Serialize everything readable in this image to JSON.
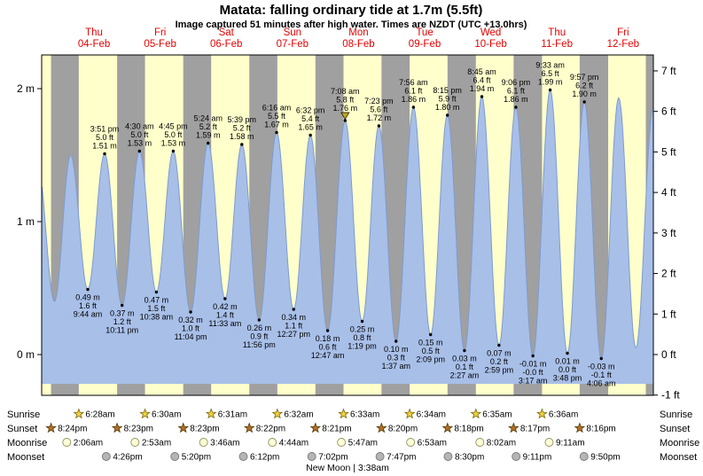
{
  "title": "Matata: falling  ordinary tide at 1.7m (5.5ft)",
  "subtitle": "Image captured 51 minutes after high water. Times are NZDT (UTC +13.0hrs)",
  "colors": {
    "day_background": "#ffffcc",
    "night_background": "#a0a0a0",
    "tide_fill": "#a8bfe8",
    "tide_stroke": "#7e9bcf",
    "day_label_red": "#e80000",
    "current_marker": "#c0a820",
    "text": "#000000"
  },
  "chart_data": {
    "type": "area",
    "title": "Matata: falling  ordinary tide at 1.7m (5.5ft)",
    "x_axis": "Thu 04-Feb through Fri 12-Feb, time of day (NZDT)",
    "y_axis_left_unit": "m",
    "y_axis_right_unit": "ft",
    "ylim_m": [
      -0.31,
      2.25
    ],
    "days": [
      {
        "weekday": "Thu",
        "date": "04-Feb"
      },
      {
        "weekday": "Fri",
        "date": "05-Feb"
      },
      {
        "weekday": "Sat",
        "date": "06-Feb"
      },
      {
        "weekday": "Sun",
        "date": "07-Feb"
      },
      {
        "weekday": "Mon",
        "date": "08-Feb"
      },
      {
        "weekday": "Tue",
        "date": "09-Feb"
      },
      {
        "weekday": "Wed",
        "date": "10-Feb"
      },
      {
        "weekday": "Thu",
        "date": "11-Feb"
      },
      {
        "weekday": "Fri",
        "date": "12-Feb"
      }
    ],
    "axes": {
      "left_ticks": [
        {
          "value": 0,
          "label": "0 m"
        },
        {
          "value": 1,
          "label": "1 m"
        },
        {
          "value": 2,
          "label": "2 m"
        }
      ],
      "right_ticks": [
        {
          "value": -1,
          "label": "-1 ft"
        },
        {
          "value": 0,
          "label": "0 ft"
        },
        {
          "value": 1,
          "label": "1 ft"
        },
        {
          "value": 2,
          "label": "2 ft"
        },
        {
          "value": 3,
          "label": "3 ft"
        },
        {
          "value": 4,
          "label": "4 ft"
        },
        {
          "value": 5,
          "label": "5 ft"
        },
        {
          "value": 6,
          "label": "6 ft"
        },
        {
          "value": 7,
          "label": "7 ft"
        }
      ]
    },
    "tide_events": [
      {
        "d": 0,
        "t": "09:44",
        "m": 0.49,
        "kind": "low",
        "lines": [
          "0.49 m",
          "1.6 ft",
          "9:44 am"
        ]
      },
      {
        "d": 0,
        "t": "15:51",
        "m": 1.51,
        "kind": "high",
        "lines": [
          "3:51 pm",
          "5.0 ft",
          "1.51 m"
        ]
      },
      {
        "d": 0,
        "t": "22:11",
        "m": 0.37,
        "kind": "low",
        "lines": [
          "0.37 m",
          "1.2 ft",
          "10:11 pm"
        ]
      },
      {
        "d": 1,
        "t": "04:30",
        "m": 1.53,
        "kind": "high",
        "lines": [
          "4:30 am",
          "5.0 ft",
          "1.53 m"
        ]
      },
      {
        "d": 1,
        "t": "10:38",
        "m": 0.47,
        "kind": "low",
        "lines": [
          "0.47 m",
          "1.5 ft",
          "10:38 am"
        ]
      },
      {
        "d": 1,
        "t": "16:45",
        "m": 1.53,
        "kind": "high",
        "lines": [
          "4:45 pm",
          "5.0 ft",
          "1.53 m"
        ]
      },
      {
        "d": 1,
        "t": "23:04",
        "m": 0.32,
        "kind": "low",
        "lines": [
          "0.32 m",
          "1.0 ft",
          "11:04 pm"
        ]
      },
      {
        "d": 2,
        "t": "05:24",
        "m": 1.59,
        "kind": "high",
        "lines": [
          "5:24 am",
          "5.2 ft",
          "1.59 m"
        ]
      },
      {
        "d": 2,
        "t": "11:33",
        "m": 0.42,
        "kind": "low",
        "lines": [
          "0.42 m",
          "1.4 ft",
          "11:33 am"
        ]
      },
      {
        "d": 2,
        "t": "17:39",
        "m": 1.58,
        "kind": "high",
        "lines": [
          "5:39 pm",
          "5.2 ft",
          "1.58 m"
        ]
      },
      {
        "d": 2,
        "t": "23:56",
        "m": 0.26,
        "kind": "low",
        "lines": [
          "0.26 m",
          "0.9 ft",
          "11:56 pm"
        ]
      },
      {
        "d": 3,
        "t": "06:16",
        "m": 1.67,
        "kind": "high",
        "lines": [
          "6:16 am",
          "5.5 ft",
          "1.67 m"
        ]
      },
      {
        "d": 3,
        "t": "12:27",
        "m": 0.34,
        "kind": "low",
        "lines": [
          "0.34 m",
          "1.1 ft",
          "12:27 pm"
        ]
      },
      {
        "d": 3,
        "t": "18:32",
        "m": 1.65,
        "kind": "high",
        "lines": [
          "6:32 pm",
          "5.4 ft",
          "1.65 m"
        ]
      },
      {
        "d": 4,
        "t": "00:47",
        "m": 0.18,
        "kind": "low",
        "lines": [
          "0.18 m",
          "0.6 ft",
          "12:47 am"
        ]
      },
      {
        "d": 4,
        "t": "07:08",
        "m": 1.76,
        "kind": "high",
        "current": true,
        "lines": [
          "7:08 am",
          "5.8 ft",
          "1.76 m"
        ]
      },
      {
        "d": 4,
        "t": "13:19",
        "m": 0.25,
        "kind": "low",
        "lines": [
          "0.25 m",
          "0.8 ft",
          "1:19 pm"
        ]
      },
      {
        "d": 4,
        "t": "19:23",
        "m": 1.72,
        "kind": "high",
        "lines": [
          "7:23 pm",
          "5.6 ft",
          "1.72 m"
        ]
      },
      {
        "d": 5,
        "t": "01:37",
        "m": 0.1,
        "kind": "low",
        "lines": [
          "0.10 m",
          "0.3 ft",
          "1:37 am"
        ]
      },
      {
        "d": 5,
        "t": "07:56",
        "m": 1.86,
        "kind": "high",
        "lines": [
          "7:56 am",
          "6.1 ft",
          "1.86 m"
        ]
      },
      {
        "d": 5,
        "t": "14:09",
        "m": 0.15,
        "kind": "low",
        "lines": [
          "0.15 m",
          "0.5 ft",
          "2:09 pm"
        ]
      },
      {
        "d": 5,
        "t": "20:15",
        "m": 1.8,
        "kind": "high",
        "lines": [
          "8:15 pm",
          "5.9 ft",
          "1.80 m"
        ]
      },
      {
        "d": 6,
        "t": "02:27",
        "m": 0.03,
        "kind": "low",
        "lines": [
          "0.03 m",
          "0.1 ft",
          "2:27 am"
        ]
      },
      {
        "d": 6,
        "t": "08:45",
        "m": 1.94,
        "kind": "high",
        "lines": [
          "8:45 am",
          "6.4 ft",
          "1.94 m"
        ]
      },
      {
        "d": 6,
        "t": "14:59",
        "m": 0.07,
        "kind": "low",
        "lines": [
          "0.07 m",
          "0.2 ft",
          "2:59 pm"
        ]
      },
      {
        "d": 6,
        "t": "21:06",
        "m": 1.86,
        "kind": "high",
        "lines": [
          "9:06 pm",
          "6.1 ft",
          "1.86 m"
        ]
      },
      {
        "d": 7,
        "t": "03:17",
        "m": -0.01,
        "kind": "low",
        "lines": [
          "-0.01 m",
          "-0.0 ft",
          "3:17 am"
        ]
      },
      {
        "d": 7,
        "t": "09:33",
        "m": 1.99,
        "kind": "high",
        "lines": [
          "9:33 am",
          "6.5 ft",
          "1.99 m"
        ]
      },
      {
        "d": 7,
        "t": "15:48",
        "m": 0.01,
        "kind": "low",
        "lines": [
          "0.01 m",
          "0.0 ft",
          "3:48 pm"
        ]
      },
      {
        "d": 7,
        "t": "21:57",
        "m": 1.9,
        "kind": "high",
        "lines": [
          "9:57 pm",
          "6.2 ft",
          "1.90 m"
        ]
      },
      {
        "d": 8,
        "t": "04:06",
        "m": -0.03,
        "kind": "low",
        "lines": [
          "-0.03 m",
          "-0.1 ft",
          "4:06 am"
        ]
      }
    ],
    "curve_edge_estimates": [
      {
        "d": -1,
        "t": "15:25",
        "m": 1.45,
        "kind": "high"
      },
      {
        "d": -1,
        "t": "21:40",
        "m": 0.4,
        "kind": "low"
      },
      {
        "d": 0,
        "t": "03:30",
        "m": 1.5,
        "kind": "high"
      },
      {
        "d": 8,
        "t": "10:25",
        "m": 1.93,
        "kind": "high"
      },
      {
        "d": 8,
        "t": "16:40",
        "m": 0.05,
        "kind": "low"
      },
      {
        "d": 8,
        "t": "22:55",
        "m": 1.85,
        "kind": "high"
      }
    ]
  },
  "sun_moon": {
    "rows": [
      {
        "name": "Sunrise",
        "icon": "sunrise",
        "events": [
          {
            "d": 0,
            "t": "06:28",
            "label": "6:28am"
          },
          {
            "d": 1,
            "t": "06:30",
            "label": "6:30am"
          },
          {
            "d": 2,
            "t": "06:31",
            "label": "6:31am"
          },
          {
            "d": 3,
            "t": "06:32",
            "label": "6:32am"
          },
          {
            "d": 4,
            "t": "06:33",
            "label": "6:33am"
          },
          {
            "d": 5,
            "t": "06:34",
            "label": "6:34am"
          },
          {
            "d": 6,
            "t": "06:35",
            "label": "6:35am"
          },
          {
            "d": 7,
            "t": "06:36",
            "label": "6:36am"
          }
        ]
      },
      {
        "name": "Sunset",
        "icon": "sunset",
        "events": [
          {
            "d": -1,
            "t": "20:24",
            "label": "8:24pm"
          },
          {
            "d": 0,
            "t": "20:23",
            "label": "8:23pm"
          },
          {
            "d": 1,
            "t": "20:23",
            "label": "8:23pm"
          },
          {
            "d": 2,
            "t": "20:22",
            "label": "8:22pm"
          },
          {
            "d": 3,
            "t": "20:21",
            "label": "8:21pm"
          },
          {
            "d": 4,
            "t": "20:20",
            "label": "8:20pm"
          },
          {
            "d": 5,
            "t": "20:18",
            "label": "8:18pm"
          },
          {
            "d": 6,
            "t": "20:17",
            "label": "8:17pm"
          },
          {
            "d": 7,
            "t": "20:16",
            "label": "8:16pm"
          }
        ]
      },
      {
        "name": "Moonrise",
        "icon": "moonrise",
        "events": [
          {
            "d": 0,
            "t": "02:06",
            "label": "2:06am"
          },
          {
            "d": 1,
            "t": "02:53",
            "label": "2:53am"
          },
          {
            "d": 2,
            "t": "03:46",
            "label": "3:46am"
          },
          {
            "d": 3,
            "t": "04:44",
            "label": "4:44am"
          },
          {
            "d": 4,
            "t": "05:47",
            "label": "5:47am"
          },
          {
            "d": 5,
            "t": "06:53",
            "label": "6:53am"
          },
          {
            "d": 6,
            "t": "08:02",
            "label": "8:02am"
          },
          {
            "d": 7,
            "t": "09:11",
            "label": "9:11am"
          }
        ]
      },
      {
        "name": "Moonset",
        "icon": "moonset",
        "events": [
          {
            "d": 0,
            "t": "16:26",
            "label": "4:26pm"
          },
          {
            "d": 1,
            "t": "17:20",
            "label": "5:20pm"
          },
          {
            "d": 2,
            "t": "18:12",
            "label": "6:12pm"
          },
          {
            "d": 3,
            "t": "19:02",
            "label": "7:02pm"
          },
          {
            "d": 4,
            "t": "19:47",
            "label": "7:47pm"
          },
          {
            "d": 5,
            "t": "20:30",
            "label": "8:30pm"
          },
          {
            "d": 6,
            "t": "21:11",
            "label": "9:11pm"
          },
          {
            "d": 7,
            "t": "21:50",
            "label": "9:50pm"
          }
        ]
      }
    ],
    "moon_phase": "New Moon | 3:38am"
  }
}
